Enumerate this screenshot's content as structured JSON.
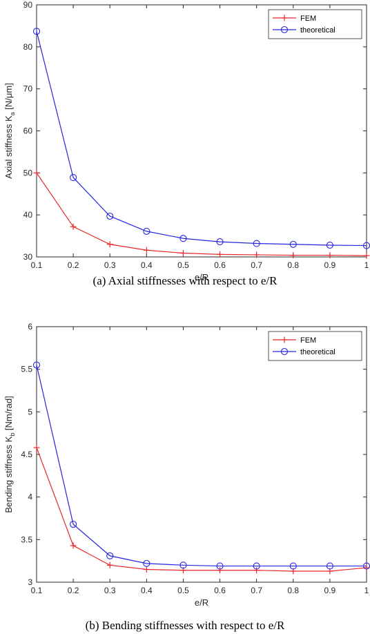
{
  "chart_data": [
    {
      "type": "line",
      "caption": "(a) Axial stiffnesses with respect to e/R",
      "xlabel": "e/R",
      "ylabel_main": "Axial stiffness K",
      "ylabel_sub": "a",
      "ylabel_unit": " [N/μm]",
      "xlim": [
        0.1,
        1
      ],
      "ylim": [
        30,
        90
      ],
      "x": [
        0.1,
        0.2,
        0.3,
        0.4,
        0.5,
        0.6,
        0.7,
        0.8,
        0.9,
        1.0
      ],
      "xticks": [
        "0.1",
        "0.2",
        "0.3",
        "0.4",
        "0.5",
        "0.6",
        "0.7",
        "0.8",
        "0.9",
        "1"
      ],
      "yticks": [
        "30",
        "40",
        "50",
        "60",
        "70",
        "80",
        "90"
      ],
      "legend_position": "top-right",
      "series": [
        {
          "name": "FEM",
          "color": "#e8262a",
          "marker": "plus",
          "values": [
            50.0,
            37.2,
            33.0,
            31.6,
            30.9,
            30.6,
            30.5,
            30.4,
            30.4,
            30.3
          ]
        },
        {
          "name": "theoretical",
          "color": "#2424e0",
          "marker": "circle",
          "values": [
            83.7,
            48.9,
            39.7,
            36.1,
            34.4,
            33.6,
            33.2,
            33.0,
            32.8,
            32.7
          ]
        }
      ]
    },
    {
      "type": "line",
      "caption": "(b) Bending stiffnesses with respect to e/R",
      "xlabel": "e/R",
      "ylabel_main": "Bending stiffness K",
      "ylabel_sub": "b",
      "ylabel_unit": " [Nm/rad]",
      "xlim": [
        0.1,
        1
      ],
      "ylim": [
        3,
        6
      ],
      "x": [
        0.1,
        0.2,
        0.3,
        0.4,
        0.5,
        0.6,
        0.7,
        0.8,
        0.9,
        1.0
      ],
      "xticks": [
        "0.1",
        "0.2",
        "0.3",
        "0.4",
        "0.5",
        "0.6",
        "0.7",
        "0.8",
        "0.9",
        "1"
      ],
      "yticks": [
        "3",
        "3.5",
        "4",
        "4.5",
        "5",
        "5.5",
        "6"
      ],
      "legend_position": "top-right",
      "series": [
        {
          "name": "FEM",
          "color": "#e8262a",
          "marker": "plus",
          "values": [
            4.58,
            3.43,
            3.2,
            3.15,
            3.14,
            3.14,
            3.14,
            3.13,
            3.13,
            3.17
          ]
        },
        {
          "name": "theoretical",
          "color": "#2424e0",
          "marker": "circle",
          "values": [
            5.55,
            3.68,
            3.31,
            3.22,
            3.2,
            3.19,
            3.19,
            3.19,
            3.19,
            3.19
          ]
        }
      ]
    }
  ]
}
